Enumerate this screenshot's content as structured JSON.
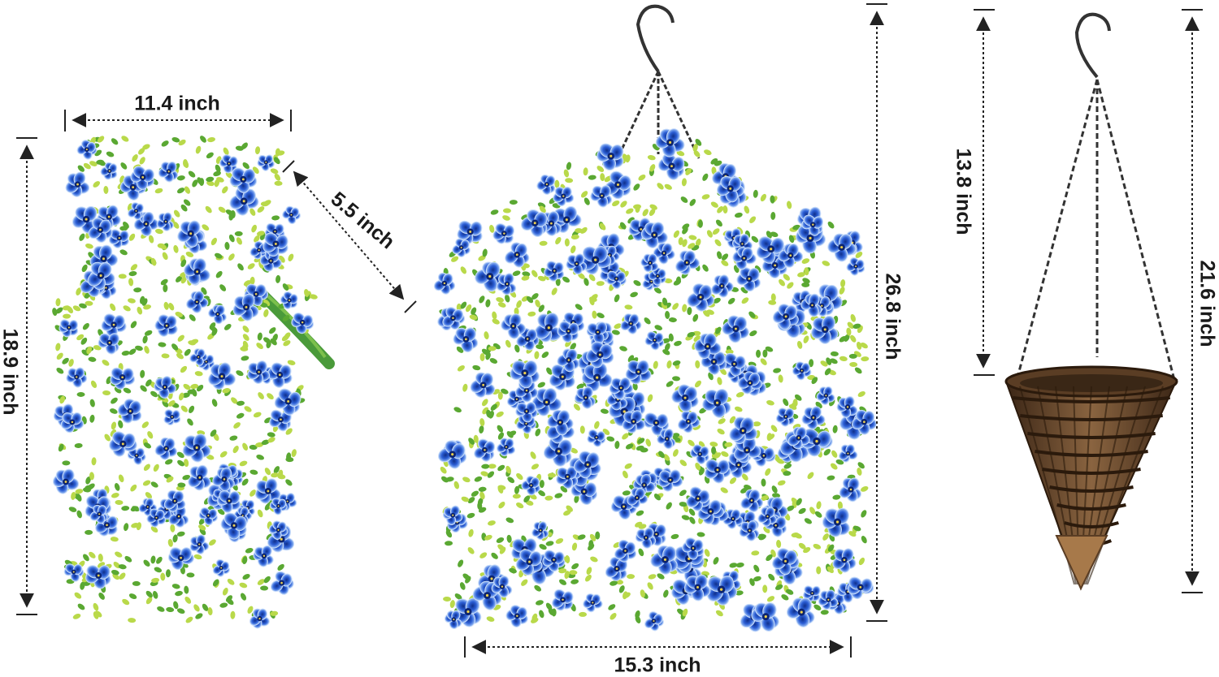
{
  "colors": {
    "flower_blue": "#2c5fd6",
    "flower_light": "#8fb4f0",
    "leaf_green": "#5aa832",
    "leaf_light": "#b9d94a",
    "stem_green": "#3d8f3a",
    "basket_brown": "#6b4a2e",
    "basket_dark": "#3b2616",
    "chain": "#333333",
    "dim_line": "#222222"
  },
  "icons": {
    "bundle": "flower-bundle-icon",
    "hanging": "hanging-basket-icon",
    "basket": "cone-basket-icon"
  },
  "dimensions": {
    "bundle_width": "11.4 inch",
    "bundle_stem": "5.5 inch",
    "bundle_height": "18.9 inch",
    "hanging_height": "26.8 inch",
    "hanging_width": "15.3 inch",
    "chain_length": "13.8 inch",
    "basket_total": "21.6 inch"
  }
}
